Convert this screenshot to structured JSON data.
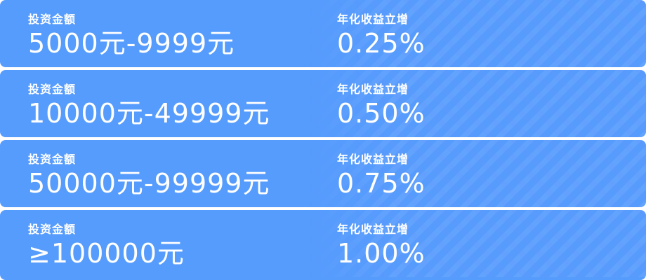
{
  "colors": {
    "card_background": "#569cfd",
    "text": "#ffffff"
  },
  "tiers": [
    {
      "amount_label": "投资金额",
      "amount_value": "5000元-9999元",
      "rate_label": "年化收益立增",
      "rate_value": "0.25%"
    },
    {
      "amount_label": "投资金额",
      "amount_value": "10000元-49999元",
      "rate_label": "年化收益立增",
      "rate_value": "0.50%"
    },
    {
      "amount_label": "投资金额",
      "amount_value": "50000元-99999元",
      "rate_label": "年化收益立增",
      "rate_value": "0.75%"
    },
    {
      "amount_label": "投资金额",
      "amount_value": "≥100000元",
      "rate_label": "年化收益立增",
      "rate_value": "1.00%"
    }
  ]
}
